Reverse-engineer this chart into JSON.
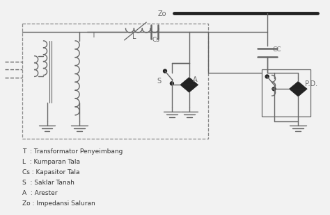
{
  "bg_color": "#f2f2f2",
  "line_color": "#666666",
  "dark_color": "#222222",
  "text_color": "#333333",
  "legend_items": [
    "T  : Transformator Penyeimbang",
    "L  : Kumparan Tala",
    "Cs : Kapasitor Tala",
    "S  : Saklar Tanah",
    "A  : Arester",
    "Zo : Impedansi Saluran"
  ],
  "fig_w": 4.74,
  "fig_h": 3.1,
  "dpi": 100
}
